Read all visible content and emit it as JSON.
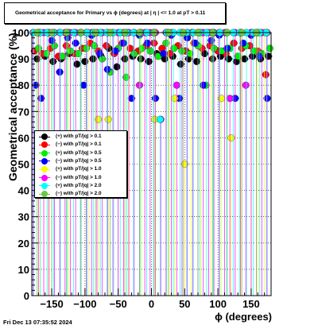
{
  "chart_data": {
    "type": "scatter",
    "title": "Geometrical acceptance for Primary vs ϕ (degrees) at | η | <= 1.0 at pT > 0.11",
    "xlabel": "ϕ (degrees)",
    "ylabel": "Geometrical acceptance (%)",
    "xlim": [
      -180,
      180
    ],
    "ylim": [
      0,
      100
    ],
    "xticks": [
      -150,
      -100,
      -50,
      0,
      50,
      100,
      150
    ],
    "xtick_labels": [
      "−150",
      "−100",
      "−50",
      "0",
      "50",
      "100",
      "150"
    ],
    "yticks": [
      0,
      10,
      20,
      30,
      40,
      50,
      60,
      70,
      80,
      90,
      100
    ],
    "ytick_labels": [
      "0",
      "10",
      "20",
      "30",
      "40",
      "50",
      "60",
      "70",
      "80",
      "90",
      "100"
    ],
    "grid": true,
    "legend_position": "middle-left",
    "series": [
      {
        "name": "(+) with pT/|q| > 0.1",
        "color": "#000000",
        "x": [
          -172,
          -160,
          -148,
          -136,
          -124,
          -112,
          -100,
          -88,
          -76,
          -64,
          -52,
          -40,
          -28,
          -16,
          -4,
          8,
          20,
          32,
          44,
          56,
          68,
          80,
          92,
          104,
          116,
          128,
          140,
          152,
          164,
          176
        ],
        "y": [
          90,
          91,
          89,
          90,
          92,
          88,
          89,
          90,
          91,
          94,
          87,
          90,
          91,
          90,
          89,
          92,
          90,
          91,
          88,
          90,
          89,
          92,
          90,
          91,
          90,
          89,
          90,
          91,
          90,
          91
        ]
      },
      {
        "name": "(−) with pT/|q| > 0.1",
        "color": "#ff0000",
        "x": [
          -176,
          -164,
          -152,
          -140,
          -128,
          -116,
          -104,
          -92,
          -80,
          -68,
          -56,
          -44,
          -32,
          -20,
          -8,
          4,
          16,
          28,
          40,
          52,
          64,
          76,
          88,
          100,
          112,
          124,
          136,
          148,
          160,
          172
        ],
        "y": [
          93,
          92,
          94,
          91,
          95,
          92,
          94,
          96,
          93,
          95,
          92,
          96,
          94,
          93,
          95,
          96,
          94,
          92,
          95,
          93,
          96,
          94,
          95,
          93,
          92,
          96,
          94,
          95,
          93,
          84
        ]
      },
      {
        "name": "(+) with pT/|q| > 0.5",
        "color": "#00ee00",
        "x": [
          -170,
          -158,
          -146,
          -134,
          -122,
          -110,
          -98,
          -86,
          -74,
          -62,
          -50,
          -38,
          -26,
          -14,
          -2,
          10,
          22,
          34,
          46,
          58,
          70,
          82,
          94,
          106,
          118,
          130,
          142,
          154,
          166,
          178
        ],
        "y": [
          94,
          92,
          95,
          91,
          93,
          92,
          94,
          95,
          90,
          85,
          94,
          83,
          92,
          94,
          93,
          91,
          96,
          94,
          93,
          92,
          95,
          80,
          94,
          93,
          94,
          91,
          95,
          93,
          92,
          94
        ]
      },
      {
        "name": "(−) with pT/|q| > 0.5",
        "color": "#0000ff",
        "x": [
          -174,
          -166,
          -150,
          -138,
          -126,
          -114,
          -102,
          -90,
          -78,
          -66,
          -54,
          -42,
          -30,
          -18,
          -6,
          6,
          18,
          30,
          42,
          54,
          66,
          78,
          90,
          102,
          114,
          126,
          138,
          150,
          162,
          174
        ],
        "y": [
          80,
          75,
          97,
          85,
          98,
          96,
          80,
          99,
          92,
          86,
          93,
          96,
          75,
          99,
          96,
          75,
          92,
          99,
          75,
          98,
          96,
          80,
          97,
          99,
          94,
          75,
          96,
          99,
          91,
          75
        ]
      },
      {
        "name": "(+) with pT/|q| > 1.0",
        "color": "#ffff00",
        "x": [
          -168,
          -155,
          -125,
          -95,
          -80,
          -65,
          -35,
          -15,
          5,
          25,
          35,
          50,
          60,
          75,
          90,
          105,
          120,
          135,
          150,
          160,
          170
        ],
        "y": [
          100,
          100,
          100,
          100,
          67,
          67,
          100,
          100,
          67,
          100,
          75,
          50,
          100,
          100,
          100,
          75,
          60,
          100,
          100,
          100,
          100
        ]
      },
      {
        "name": "(−) with pT/|q| > 1.0",
        "color": "#ff00ff",
        "x": [
          -178,
          -170,
          -162,
          -154,
          -146,
          -138,
          -130,
          -122,
          -114,
          -106,
          -98,
          -90,
          -82,
          -74,
          -66,
          -58,
          -50,
          -42,
          -34,
          -26,
          -18,
          -10,
          -2,
          6,
          14,
          22,
          30,
          38,
          46,
          54,
          62,
          70,
          78,
          86,
          94,
          102,
          110,
          118,
          126,
          134,
          142,
          150,
          158,
          166,
          174
        ],
        "y": [
          100,
          100,
          100,
          100,
          100,
          100,
          100,
          100,
          100,
          100,
          100,
          100,
          100,
          100,
          100,
          100,
          100,
          100,
          100,
          100,
          80,
          100,
          100,
          100,
          67,
          100,
          100,
          80,
          100,
          100,
          100,
          100,
          100,
          100,
          100,
          100,
          100,
          75,
          100,
          100,
          80,
          100,
          100,
          100,
          100
        ]
      },
      {
        "name": "(+) with pT/|q| > 2.0",
        "color": "#00ffff",
        "x": [
          -177,
          -167,
          -157,
          -147,
          -137,
          -127,
          -117,
          -107,
          -97,
          -87,
          -77,
          -67,
          -57,
          -47,
          -37,
          -27,
          -17,
          -7,
          3,
          13,
          23,
          33,
          43,
          53,
          63,
          73,
          83,
          93,
          103,
          113,
          123,
          133,
          143,
          153,
          163,
          173
        ],
        "y": [
          100,
          100,
          100,
          100,
          100,
          100,
          100,
          100,
          100,
          100,
          100,
          100,
          100,
          100,
          100,
          100,
          100,
          100,
          100,
          67,
          100,
          100,
          100,
          100,
          100,
          100,
          100,
          100,
          100,
          100,
          100,
          100,
          100,
          100,
          100,
          100
        ]
      },
      {
        "name": "(−) with pT/|q| > 2.0",
        "color": "#66cc44",
        "x": [
          -172,
          -150,
          -128,
          -106,
          -84,
          -62,
          -40,
          -18,
          4,
          26,
          48,
          70,
          92,
          114,
          136,
          158
        ],
        "y": [
          100,
          100,
          100,
          100,
          100,
          100,
          100,
          100,
          100,
          100,
          100,
          100,
          100,
          100,
          100,
          100
        ]
      }
    ]
  },
  "footer": {
    "timestamp": "Fri Dec 13 07:35:52 2024"
  }
}
